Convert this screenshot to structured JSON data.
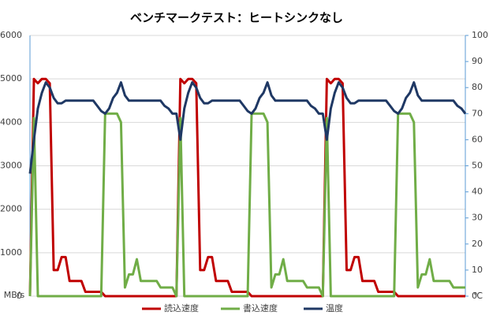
{
  "chart_data": {
    "type": "line",
    "title": "ベンチマークテスト：ヒートシンクなし",
    "y_label": "MB/s",
    "y2_label": "℃",
    "categories": [
      null,
      null,
      null,
      null,
      null,
      null,
      null,
      null,
      null,
      null,
      null,
      null,
      null,
      null,
      null,
      null,
      null,
      null,
      null,
      null,
      null,
      null,
      null,
      null,
      null,
      null,
      null,
      null,
      null,
      null,
      null,
      null,
      null,
      null,
      null,
      null,
      null,
      null,
      null,
      null,
      null,
      null,
      null,
      null,
      null,
      null,
      null,
      null,
      null,
      null,
      null,
      null,
      null,
      null,
      null,
      null,
      null,
      null,
      null,
      null,
      null,
      null,
      null,
      null,
      null,
      null,
      null,
      null,
      null,
      null,
      null,
      null,
      null,
      null,
      null,
      null,
      null,
      null,
      null,
      null,
      null,
      null,
      null,
      null,
      null,
      null,
      null,
      null,
      null,
      null,
      null,
      null,
      null,
      null,
      null,
      null,
      null,
      null,
      null,
      null,
      null,
      null,
      null,
      null,
      null,
      null,
      null,
      null,
      null,
      null,
      null
    ],
    "ylim": [
      0,
      6000
    ],
    "yticks": [
      0,
      1000,
      2000,
      3000,
      4000,
      5000,
      6000
    ],
    "y2lim": [
      0,
      100
    ],
    "y2ticks": [
      0,
      10,
      20,
      30,
      40,
      50,
      60,
      70,
      80,
      90,
      100
    ],
    "grid": true,
    "legend": "bottom",
    "series": [
      {
        "name": "読込速度",
        "color": "#c00000",
        "values": [
          0,
          5000,
          4900,
          5000,
          5000,
          4900,
          600,
          600,
          900,
          900,
          350,
          350,
          350,
          350,
          100,
          100,
          100,
          100,
          100,
          0,
          0,
          0,
          0,
          0,
          0,
          0,
          0,
          0,
          0,
          0,
          0,
          0,
          0,
          0,
          0,
          0,
          0,
          0,
          5000,
          4900,
          5000,
          5000,
          4900,
          600,
          600,
          900,
          900,
          350,
          350,
          350,
          350,
          100,
          100,
          100,
          100,
          100,
          0,
          0,
          0,
          0,
          0,
          0,
          0,
          0,
          0,
          0,
          0,
          0,
          0,
          0,
          0,
          0,
          0,
          0,
          0,
          5000,
          4900,
          5000,
          5000,
          4900,
          600,
          600,
          900,
          900,
          350,
          350,
          350,
          350,
          100,
          100,
          100,
          100,
          100,
          0,
          0,
          0,
          0,
          0,
          0,
          0,
          0,
          0,
          0,
          0,
          0,
          0,
          0,
          0,
          0,
          0,
          0
        ]
      },
      {
        "name": "書込速度",
        "color": "#70ad47",
        "values": [
          0,
          4100,
          0,
          0,
          0,
          0,
          0,
          0,
          0,
          0,
          0,
          0,
          0,
          0,
          0,
          0,
          0,
          0,
          0,
          4200,
          4200,
          4200,
          4200,
          4000,
          200,
          500,
          500,
          850,
          350,
          350,
          350,
          350,
          350,
          200,
          200,
          200,
          200,
          0,
          4100,
          0,
          0,
          0,
          0,
          0,
          0,
          0,
          0,
          0,
          0,
          0,
          0,
          0,
          0,
          0,
          0,
          0,
          4200,
          4200,
          4200,
          4200,
          4000,
          200,
          500,
          500,
          850,
          350,
          350,
          350,
          350,
          350,
          200,
          200,
          200,
          200,
          0,
          4100,
          0,
          0,
          0,
          0,
          0,
          0,
          0,
          0,
          0,
          0,
          0,
          0,
          0,
          0,
          0,
          0,
          0,
          4200,
          4200,
          4200,
          4200,
          4000,
          200,
          500,
          500,
          850,
          350,
          350,
          350,
          350,
          350,
          200,
          200,
          200,
          200
        ]
      },
      {
        "name": "温度",
        "color": "#1f3864",
        "axis": "y2",
        "values": [
          47,
          60,
          72,
          78,
          82,
          80,
          76,
          74,
          74,
          75,
          75,
          75,
          75,
          75,
          75,
          75,
          75,
          73,
          71,
          70,
          72,
          76,
          78,
          82,
          77,
          75,
          75,
          75,
          75,
          75,
          75,
          75,
          75,
          75,
          73,
          72,
          70,
          70,
          60,
          72,
          78,
          82,
          80,
          76,
          74,
          74,
          75,
          75,
          75,
          75,
          75,
          75,
          75,
          75,
          73,
          71,
          70,
          72,
          76,
          78,
          82,
          77,
          75,
          75,
          75,
          75,
          75,
          75,
          75,
          75,
          75,
          73,
          72,
          70,
          70,
          60,
          72,
          78,
          82,
          80,
          76,
          74,
          74,
          75,
          75,
          75,
          75,
          75,
          75,
          75,
          75,
          73,
          71,
          70,
          72,
          76,
          78,
          82,
          77,
          75,
          75,
          75,
          75,
          75,
          75,
          75,
          75,
          75,
          73,
          72,
          70
        ]
      }
    ]
  }
}
